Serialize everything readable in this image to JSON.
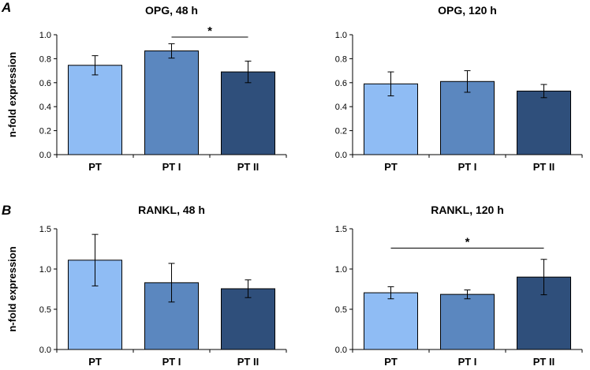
{
  "panel_labels": [
    "A",
    "B"
  ],
  "colors": {
    "PT": "#8fbcf4",
    "PT I": "#5b87bf",
    "PT II": "#2f4f7b",
    "axis": "#000000",
    "bar_edge": "#000000"
  },
  "chart_data": [
    {
      "type": "bar",
      "panel": "A",
      "title": "OPG, 48 h",
      "ylabel": "n-fold expression",
      "xlabel": "",
      "categories": [
        "PT",
        "PT I",
        "PT II"
      ],
      "values": [
        0.745,
        0.865,
        0.69
      ],
      "errors": [
        0.08,
        0.06,
        0.09
      ],
      "ylim": [
        0,
        1.0
      ],
      "yticks": [
        0,
        0.2,
        0.4,
        0.6,
        0.8,
        1.0
      ],
      "ytick_labels": [
        "0.0",
        "0.2",
        "0.4",
        "0.6",
        "0.8",
        "1.0"
      ],
      "significance": [
        {
          "from": "PT I",
          "to": "PT II",
          "label": "*",
          "y": 0.98
        }
      ]
    },
    {
      "type": "bar",
      "panel": "A",
      "title": "OPG, 120 h",
      "ylabel": "",
      "xlabel": "",
      "categories": [
        "PT",
        "PT I",
        "PT II"
      ],
      "values": [
        0.59,
        0.61,
        0.53
      ],
      "errors": [
        0.1,
        0.09,
        0.055
      ],
      "ylim": [
        0,
        1.0
      ],
      "yticks": [
        0,
        0.2,
        0.4,
        0.6,
        0.8,
        1.0
      ],
      "ytick_labels": [
        "0.0",
        "0.2",
        "0.4",
        "0.6",
        "0.8",
        "1.0"
      ],
      "significance": []
    },
    {
      "type": "bar",
      "panel": "B",
      "title": "RANKL, 48 h",
      "ylabel": "n-fold expression",
      "xlabel": "",
      "categories": [
        "PT",
        "PT I",
        "PT II"
      ],
      "values": [
        1.11,
        0.83,
        0.755
      ],
      "errors": [
        0.32,
        0.24,
        0.11
      ],
      "ylim": [
        0,
        1.5
      ],
      "yticks": [
        0,
        0.5,
        1.0,
        1.5
      ],
      "ytick_labels": [
        "0.0",
        "0.5",
        "1.0",
        "1.5"
      ],
      "significance": []
    },
    {
      "type": "bar",
      "panel": "B",
      "title": "RANKL, 120 h",
      "ylabel": "",
      "xlabel": "",
      "categories": [
        "PT",
        "PT I",
        "PT II"
      ],
      "values": [
        0.705,
        0.685,
        0.9
      ],
      "errors": [
        0.075,
        0.055,
        0.22
      ],
      "ylim": [
        0,
        1.5
      ],
      "yticks": [
        0,
        0.5,
        1.0,
        1.5
      ],
      "ytick_labels": [
        "0.0",
        "0.5",
        "1.0",
        "1.5"
      ],
      "significance": [
        {
          "from": "PT",
          "to": "PT II",
          "label": "*",
          "y": 1.26
        }
      ]
    }
  ]
}
